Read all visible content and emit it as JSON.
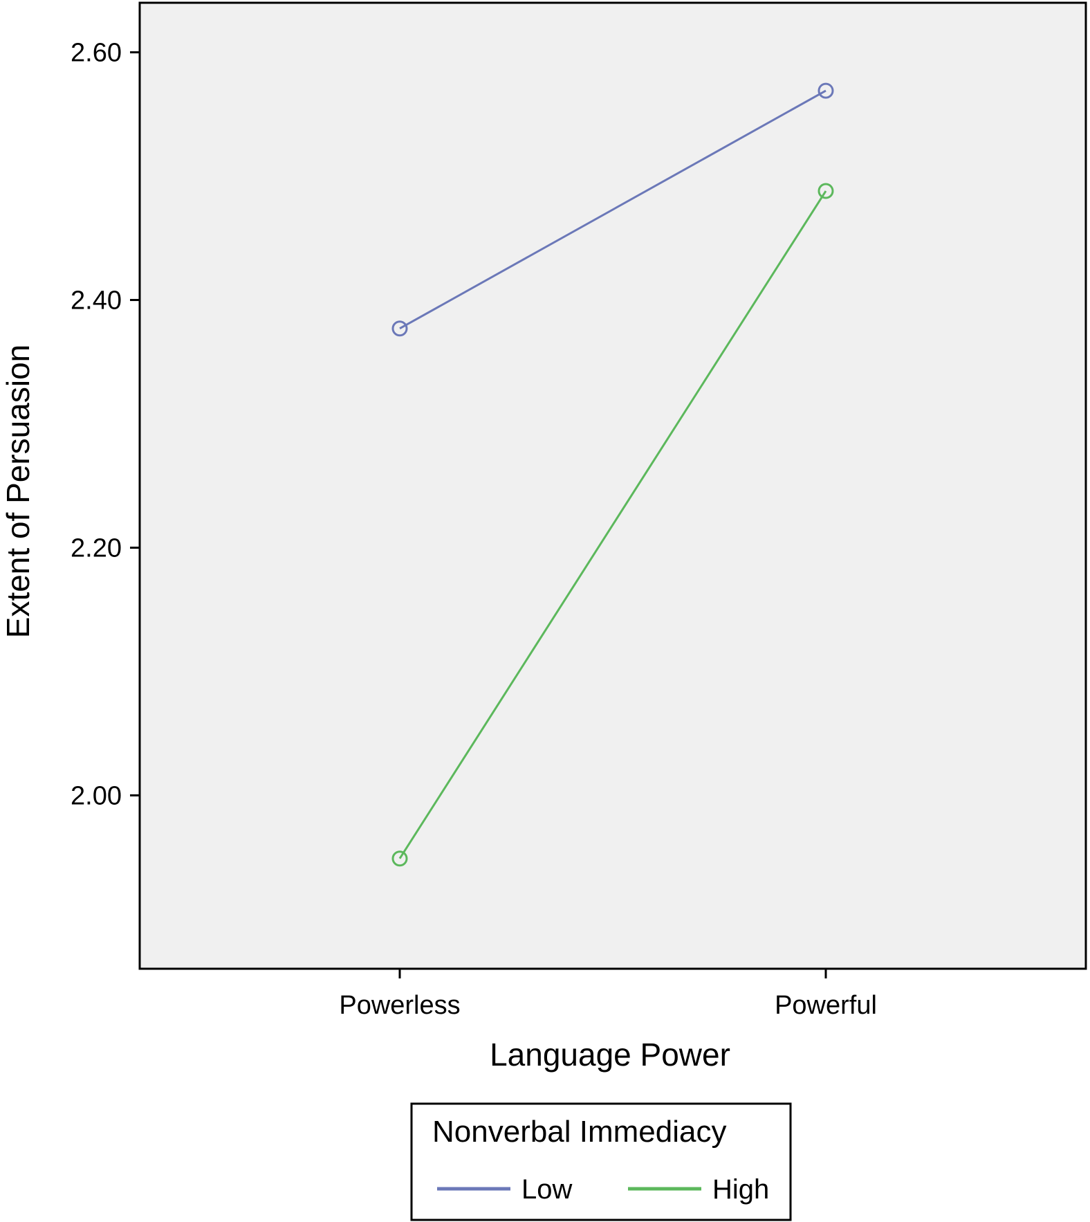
{
  "chart_data": {
    "type": "line",
    "title": "",
    "xlabel": "Language Power",
    "ylabel": "Extent of Persuasion",
    "categories": [
      "Powerless",
      "Powerful"
    ],
    "y_ticks": [
      "2.00",
      "2.20",
      "2.40",
      "2.60"
    ],
    "y_tick_values": [
      2.0,
      2.2,
      2.4,
      2.6
    ],
    "ylim": [
      1.86,
      2.64
    ],
    "grid": false,
    "markers": "hollow-circle",
    "legend": {
      "title": "Nonverbal Immediacy",
      "position": "bottom-center"
    },
    "series": [
      {
        "name": "Low",
        "values": [
          2.377,
          2.569
        ],
        "color": "#6b78b8"
      },
      {
        "name": "High",
        "values": [
          1.949,
          2.488
        ],
        "color": "#5cb85c"
      }
    ],
    "colors": {
      "plot_background": "#f0f0f0",
      "frame": "#000000"
    }
  }
}
